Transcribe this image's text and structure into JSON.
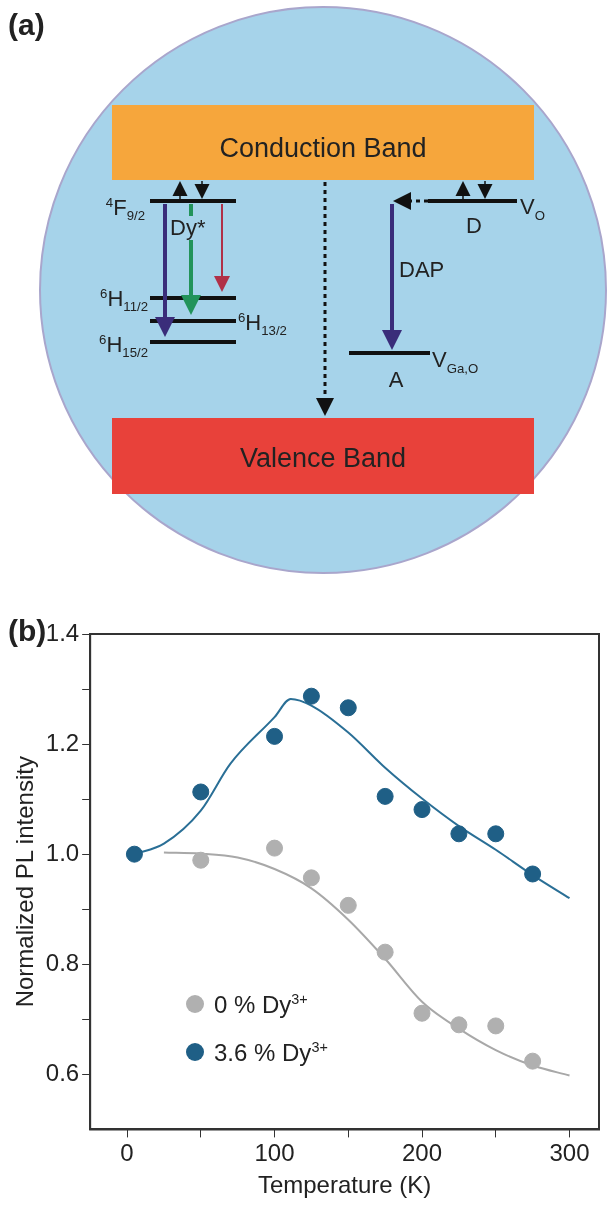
{
  "chart_data": [
    {
      "type": "other",
      "title": "(a)",
      "annotations": [
        "Conduction Band",
        "Valence Band",
        "$^{4}$F$_{9/2}$",
        "Dy*",
        "$^{6}$H$_{11/2}$",
        "$^{6}$H$_{13/2}$",
        "$^{6}$H$_{15/2}$",
        "D",
        "V$_{O}$",
        "DAP",
        "A",
        "V$_{Ga,O}$"
      ]
    },
    {
      "type": "scatter",
      "title": "(b)",
      "xlabel": "Temperature (K)",
      "ylabel": "Normalized PL intensity",
      "x": [
        5,
        50,
        100,
        125,
        150,
        175,
        200,
        225,
        250,
        275
      ],
      "xlim": [
        -25,
        320
      ],
      "xticks": [
        0,
        {
          "value": 50,
          "label": null
        },
        100,
        {
          "value": 150,
          "label": null
        },
        200,
        {
          "value": 250,
          "label": null
        },
        300
      ],
      "ylim": [
        0.5,
        1.4
      ],
      "yticks": [
        {
          "value": 0.6,
          "label": "0.6"
        },
        {
          "value": 0.7,
          "label": null
        },
        {
          "value": 0.8,
          "label": "0.8"
        },
        {
          "value": 0.9,
          "label": null
        },
        {
          "value": 1.0,
          "label": "1.0"
        },
        {
          "value": 1.1,
          "label": null
        },
        {
          "value": 1.2,
          "label": "1.2"
        },
        {
          "value": 1.3,
          "label": null
        },
        {
          "value": 1.4,
          "label": "1.4"
        }
      ],
      "grid": false,
      "legend": "bottom left",
      "marker": "circle",
      "series": [
        {
          "type": "line",
          "marker": "none",
          "color": "#a8a8a8",
          "x": [
            25,
            50,
            75,
            100,
            125,
            150,
            175,
            200,
            225,
            250,
            275,
            300
          ],
          "values": [
            1.003,
            1.001,
            0.994,
            0.973,
            0.938,
            0.881,
            0.81,
            0.732,
            0.683,
            0.644,
            0.616,
            0.598
          ]
        },
        {
          "type": "line",
          "marker": "none",
          "color": "#2a6f96",
          "x": [
            5,
            25,
            50,
            70,
            100,
            111,
            125,
            150,
            175,
            200,
            225,
            250,
            275,
            300
          ],
          "values": [
            1.0,
            1.019,
            1.079,
            1.164,
            1.249,
            1.282,
            1.27,
            1.221,
            1.157,
            1.101,
            1.051,
            1.008,
            0.962,
            0.92
          ]
        },
        {
          "name": "0 % Dy$^{3+}$",
          "color": "#b0b0b0",
          "x": [
            50,
            100,
            125,
            150,
            175,
            200,
            225,
            250,
            275
          ],
          "values": [
            0.989,
            1.011,
            0.957,
            0.907,
            0.822,
            0.711,
            0.69,
            0.688,
            0.624
          ]
        },
        {
          "name": "3.6 % Dy$^{3+}$",
          "color": "#1f5f86",
          "values": [
            1.0,
            1.113,
            1.214,
            1.287,
            1.266,
            1.105,
            1.081,
            1.037,
            1.037,
            0.964
          ]
        }
      ]
    }
  ]
}
